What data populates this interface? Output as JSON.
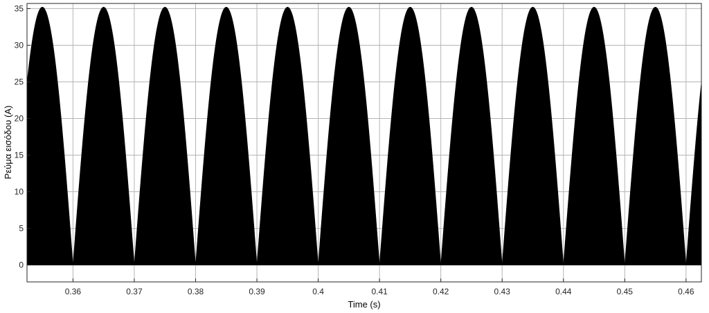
{
  "chart_data": {
    "type": "area",
    "title": "",
    "xlabel": "Time (s)",
    "ylabel": "Ρεύμα εισόδου (A)",
    "xlim": [
      0.3525,
      0.4625
    ],
    "ylim": [
      -2.3,
      35.7
    ],
    "x_ticks": [
      0.36,
      0.37,
      0.38,
      0.39,
      0.4,
      0.41,
      0.42,
      0.43,
      0.44,
      0.45,
      0.46
    ],
    "x_tick_labels": [
      "0.36",
      "0.37",
      "0.38",
      "0.39",
      "0.4",
      "0.41",
      "0.42",
      "0.43",
      "0.44",
      "0.45",
      "0.46"
    ],
    "y_ticks": [
      0,
      5,
      10,
      15,
      20,
      25,
      30,
      35
    ],
    "y_tick_labels": [
      "0",
      "5",
      "10",
      "15",
      "20",
      "25",
      "30",
      "35"
    ],
    "grid": true,
    "series": [
      {
        "color": "#000000",
        "fill": true,
        "shape": "rectified sine envelope |sin(2π·50·t)|",
        "peak": 35.2,
        "frequency_hz": 50,
        "period_s": 0.01,
        "zero_crossings": [
          0.36,
          0.37,
          0.38,
          0.39,
          0.4,
          0.41,
          0.42,
          0.43,
          0.44,
          0.45,
          0.46
        ],
        "peaks_at": [
          0.355,
          0.365,
          0.375,
          0.385,
          0.395,
          0.405,
          0.415,
          0.425,
          0.435,
          0.445,
          0.455
        ]
      }
    ]
  }
}
